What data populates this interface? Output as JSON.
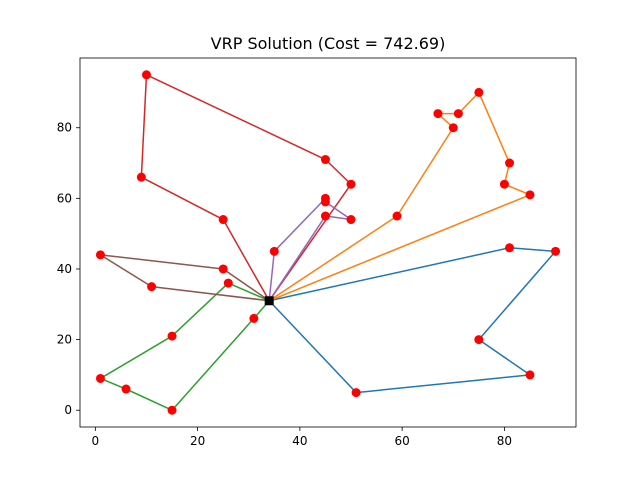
{
  "chart_data": {
    "type": "line",
    "title": "VRP Solution (Cost = 742.69)",
    "xlabel": "",
    "ylabel": "",
    "xlim": [
      -3,
      94
    ],
    "ylim": [
      -4.75,
      99.75
    ],
    "xticks": [
      0,
      20,
      40,
      60,
      80
    ],
    "yticks": [
      0,
      20,
      40,
      60,
      80
    ],
    "depot": {
      "x": 34,
      "y": 31,
      "color": "#000000"
    },
    "node_color": "#ff0000",
    "grid": false,
    "routes": [
      {
        "color": "#1f77b4",
        "points": [
          [
            34,
            31
          ],
          [
            51,
            5
          ],
          [
            85,
            10
          ],
          [
            75,
            20
          ],
          [
            90,
            45
          ],
          [
            81,
            46
          ],
          [
            34,
            31
          ]
        ]
      },
      {
        "color": "#ff7f0e",
        "points": [
          [
            34,
            31
          ],
          [
            85,
            61
          ],
          [
            80,
            64
          ],
          [
            81,
            70
          ],
          [
            75,
            90
          ],
          [
            71,
            84
          ],
          [
            67,
            84
          ],
          [
            70,
            80
          ],
          [
            59,
            55
          ],
          [
            34,
            31
          ]
        ]
      },
      {
        "color": "#2ca02c",
        "points": [
          [
            34,
            31
          ],
          [
            31,
            26
          ],
          [
            15,
            0
          ],
          [
            6,
            6
          ],
          [
            1,
            9
          ],
          [
            15,
            21
          ],
          [
            26,
            36
          ],
          [
            34,
            31
          ]
        ]
      },
      {
        "color": "#d62728",
        "points": [
          [
            34,
            31
          ],
          [
            50,
            64
          ],
          [
            45,
            71
          ],
          [
            10,
            95
          ],
          [
            9,
            66
          ],
          [
            25,
            54
          ],
          [
            34,
            31
          ]
        ]
      },
      {
        "color": "#9467bd",
        "points": [
          [
            34,
            31
          ],
          [
            35,
            45
          ],
          [
            45,
            60
          ],
          [
            45,
            59
          ],
          [
            50,
            54
          ],
          [
            45,
            55
          ],
          [
            34,
            31
          ]
        ]
      },
      {
        "color": "#8c564b",
        "points": [
          [
            34,
            31
          ],
          [
            11,
            35
          ],
          [
            1,
            44
          ],
          [
            25,
            40
          ],
          [
            34,
            31
          ]
        ]
      }
    ]
  }
}
